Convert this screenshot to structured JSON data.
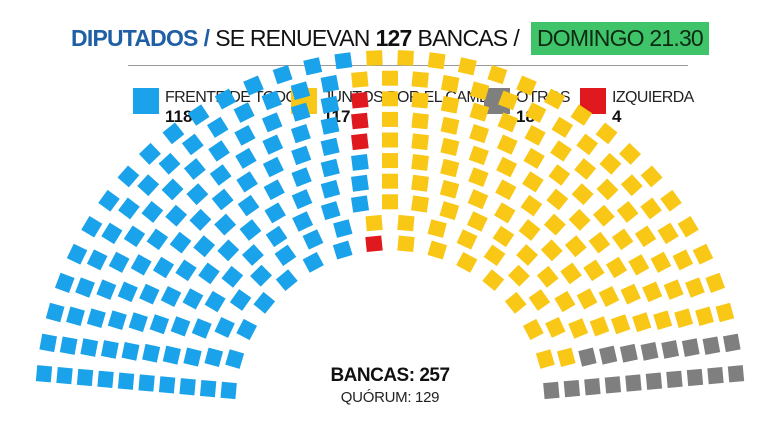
{
  "header": {
    "part1": "DIPUTADOS",
    "sep1": "/",
    "part2": "SE RENUEVAN",
    "part3": "127",
    "part4": "BANCAS",
    "sep2": "/",
    "part5": "DOMINGO 21.30"
  },
  "chart_data": {
    "type": "parliament",
    "total_label": "BANCAS: 257",
    "quorum_label": "QUÓRUM: 129",
    "total_seats": 257,
    "series": [
      {
        "name": "FRENTE DE TODOS",
        "value": 118,
        "value_label": "118",
        "color": "#1aa3ea"
      },
      {
        "name": "IZQUIERDA",
        "value": 4,
        "value_label": "4",
        "color": "#e0191f"
      },
      {
        "name": "JUNTOS POR EL CAMBIO",
        "value": 117,
        "value_label": "117",
        "color": "#f9c716"
      },
      {
        "name": "OTROS",
        "value": 18,
        "value_label": "18",
        "color": "#7f7f7f"
      }
    ],
    "legend": [
      {
        "name": "FRENTE DE TODOS",
        "value_label": "118",
        "color": "#1aa3ea"
      },
      {
        "name": "JUNTOS POR EL CAMBIO",
        "value_label": "117",
        "color": "#f9c716"
      },
      {
        "name": "OTROS",
        "value_label": "18",
        "color": "#7f7f7f"
      },
      {
        "name": "IZQUIERDA",
        "value_label": "4",
        "color": "#e0191f"
      }
    ]
  }
}
